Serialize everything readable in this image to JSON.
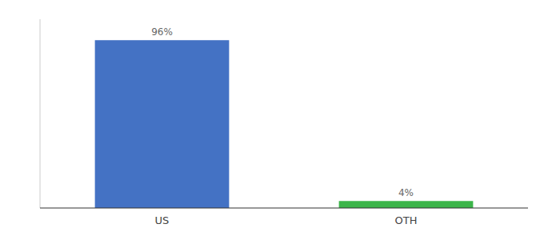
{
  "chart_data": {
    "type": "bar",
    "categories": [
      "US",
      "OTH"
    ],
    "values": [
      96,
      4
    ],
    "value_labels": [
      "96%",
      "4%"
    ],
    "colors": [
      "#4472c4",
      "#3cb54a"
    ],
    "ylim": [
      0,
      108
    ],
    "data_labels": true,
    "tick_labels": "x",
    "grid": false
  }
}
